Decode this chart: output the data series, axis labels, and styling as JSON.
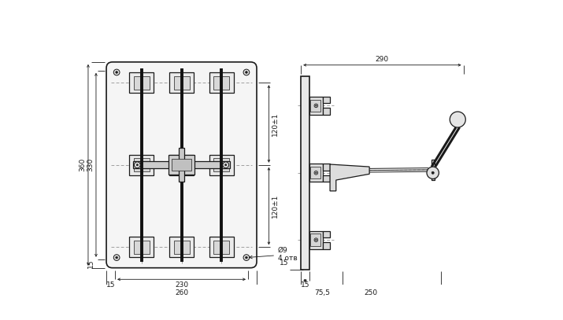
{
  "bg_color": "#ffffff",
  "line_color": "#1a1a1a",
  "fig_width": 7.15,
  "fig_height": 4.07,
  "dpi": 100,
  "lw_main": 0.9,
  "lw_thick": 1.2,
  "lw_thin": 0.5,
  "lw_dim": 0.6,
  "fs": 6.5,
  "fc_panel": "#f5f5f5",
  "fc_block": "#e8e8e8",
  "fc_inner": "#d8d8d8",
  "fc_dark": "#555555",
  "dash_color": "#888888"
}
